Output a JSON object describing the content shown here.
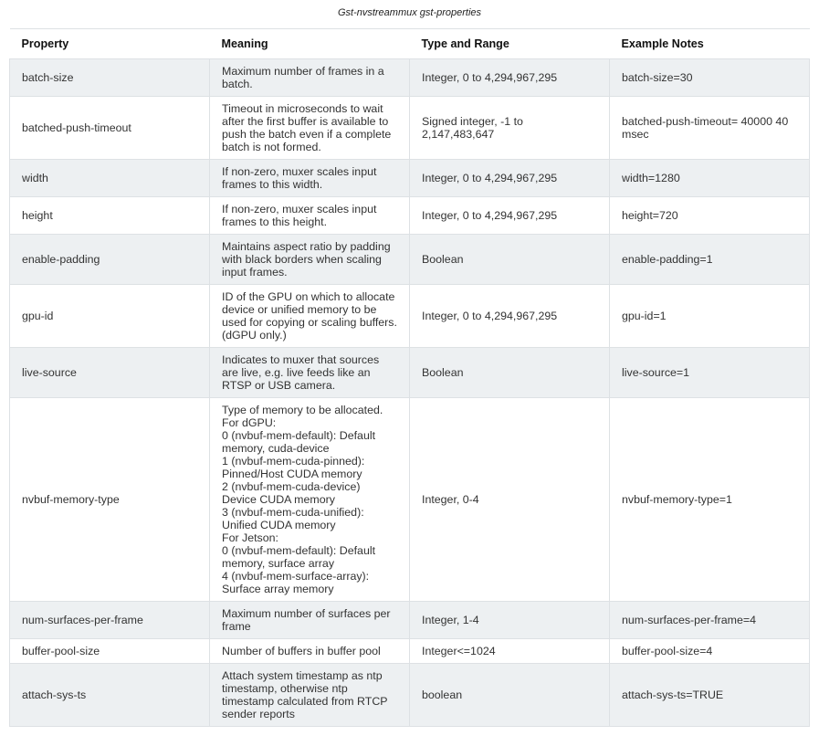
{
  "caption": "Gst-nvstreammux gst-properties",
  "headers": [
    "Property",
    "Meaning",
    "Type and Range",
    "Example Notes"
  ],
  "rows": [
    {
      "property": "batch-size",
      "meaning": "Maximum number of frames in a batch.",
      "type": "Integer, 0 to 4,294,967,295",
      "example": "batch-size=30"
    },
    {
      "property": "batched-push-timeout",
      "meaning": "Timeout in microseconds to wait after the first buffer is available to push the batch even if a complete batch is not formed.",
      "type": "Signed integer, -1 to 2,147,483,647",
      "example": "batched-push-timeout= 40000 40 msec"
    },
    {
      "property": "width",
      "meaning": "If non-zero, muxer scales input frames to this width.",
      "type": "Integer, 0 to 4,294,967,295",
      "example": "width=1280"
    },
    {
      "property": "height",
      "meaning": "If non-zero, muxer scales input frames to this height.",
      "type": "Integer, 0 to 4,294,967,295",
      "example": "height=720"
    },
    {
      "property": "enable-padding",
      "meaning": "Maintains aspect ratio by padding with black borders when scaling input frames.",
      "type": "Boolean",
      "example": "enable-padding=1"
    },
    {
      "property": "gpu-id",
      "meaning": "ID of the GPU on which to allocate device or unified memory to be used for copying or scaling buffers. (dGPU only.)",
      "type": "Integer, 0 to 4,294,967,295",
      "example": "gpu-id=1"
    },
    {
      "property": "live-source",
      "meaning": "Indicates to muxer that sources are live, e.g. live feeds like an RTSP or USB camera.",
      "type": "Boolean",
      "example": "live-source=1"
    },
    {
      "property": "nvbuf-memory-type",
      "meaning": "Type of memory to be allocated.\nFor dGPU:\n0 (nvbuf-mem-default): Default memory, cuda-device\n1 (nvbuf-mem-cuda-pinned): Pinned/Host CUDA memory\n2 (nvbuf-mem-cuda-device) Device CUDA memory\n3 (nvbuf-mem-cuda-unified): Unified CUDA memory\nFor Jetson:\n0 (nvbuf-mem-default): Default memory, surface array\n4 (nvbuf-mem-surface-array): Surface array memory",
      "type": "Integer, 0-4",
      "example": "nvbuf-memory-type=1"
    },
    {
      "property": "num-surfaces-per-frame",
      "meaning": "Maximum number of surfaces per frame",
      "type": "Integer, 1-4",
      "example": "num-surfaces-per-frame=4"
    },
    {
      "property": "buffer-pool-size",
      "meaning": "Number of buffers in buffer pool",
      "type": "Integer<=1024",
      "example": "buffer-pool-size=4"
    },
    {
      "property": "attach-sys-ts",
      "meaning": "Attach system timestamp as ntp timestamp, otherwise ntp timestamp calculated from RTCP sender reports",
      "type": "boolean",
      "example": "attach-sys-ts=TRUE"
    }
  ]
}
